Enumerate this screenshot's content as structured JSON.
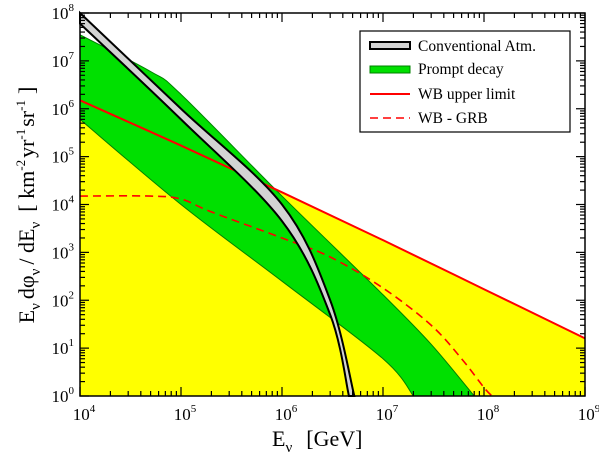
{
  "chart_data": {
    "type": "area",
    "x_scale": "log",
    "y_scale": "log",
    "xlim": [
      10000,
      1000000000
    ],
    "ylim": [
      1,
      100000000
    ],
    "x_ticks": [
      {
        "base": "10",
        "exp": "4",
        "value": 10000
      },
      {
        "base": "10",
        "exp": "5",
        "value": 100000
      },
      {
        "base": "10",
        "exp": "6",
        "value": 1000000
      },
      {
        "base": "10",
        "exp": "7",
        "value": 10000000
      },
      {
        "base": "10",
        "exp": "8",
        "value": 100000000
      },
      {
        "base": "10",
        "exp": "9",
        "value": 1000000000
      }
    ],
    "y_ticks": [
      {
        "base": "10",
        "exp": "0",
        "value": 1
      },
      {
        "base": "10",
        "exp": "1",
        "value": 10
      },
      {
        "base": "10",
        "exp": "2",
        "value": 100
      },
      {
        "base": "10",
        "exp": "3",
        "value": 1000
      },
      {
        "base": "10",
        "exp": "4",
        "value": 10000
      },
      {
        "base": "10",
        "exp": "5",
        "value": 100000
      },
      {
        "base": "10",
        "exp": "6",
        "value": 1000000
      },
      {
        "base": "10",
        "exp": "7",
        "value": 10000000
      },
      {
        "base": "10",
        "exp": "8",
        "value": 100000000
      }
    ],
    "xlabel": {
      "main": "E",
      "sub": "ν",
      "unit": "[GeV]"
    },
    "ylabel": {
      "e": "E",
      "nu": "ν",
      "d": "dφ",
      "slash": "/ dE",
      "bracket_open": "[ km",
      "m2": "-2",
      "yr": "yr",
      "m1a": "-1",
      "sr": "sr",
      "m1b": "-1",
      "bracket_close": "]"
    },
    "legend_position": "top-right",
    "series": [
      {
        "name": "Conventional Atm.",
        "kind": "band",
        "color": "#d3d3d3",
        "edge_color": "#000000",
        "upper": [
          [
            10000,
            100000000
          ],
          [
            100000,
            1000000
          ],
          [
            1000000,
            10000
          ],
          [
            3000000,
            100
          ],
          [
            5200000,
            1
          ]
        ],
        "lower": [
          [
            10000,
            60000000
          ],
          [
            100000,
            600000
          ],
          [
            1000000,
            4500
          ],
          [
            3000000,
            50
          ],
          [
            4600000,
            1
          ]
        ]
      },
      {
        "name": "Prompt decay",
        "kind": "band",
        "color": "#00e000",
        "edge_color": "#008000",
        "upper": [
          [
            10000,
            35000000
          ],
          [
            50000,
            6000000
          ],
          [
            100000,
            2000000
          ],
          [
            1000000,
            15000
          ],
          [
            10000000,
            130
          ],
          [
            30000000,
            12
          ],
          [
            80000000,
            1
          ]
        ],
        "lower": [
          [
            10000,
            600000
          ],
          [
            100000,
            10000
          ],
          [
            1000000,
            250
          ],
          [
            10000000,
            6
          ],
          [
            20000000,
            1
          ]
        ]
      },
      {
        "name": "WB upper limit",
        "kind": "line",
        "color": "#ff0000",
        "dash": "solid",
        "points": [
          [
            10000,
            1500000
          ],
          [
            100000,
            170000
          ],
          [
            1000000,
            18000
          ],
          [
            10000000,
            1800
          ],
          [
            100000000,
            170
          ],
          [
            1000000000,
            16
          ]
        ]
      },
      {
        "name": "WB - GRB",
        "kind": "line",
        "color": "#ff0000",
        "dash": "dashed",
        "points": [
          [
            10000,
            15000
          ],
          [
            50000,
            15000
          ],
          [
            100000,
            13000
          ],
          [
            200000,
            7000
          ],
          [
            1000000,
            2000
          ],
          [
            3000000,
            800
          ],
          [
            10000000,
            180
          ],
          [
            30000000,
            30
          ],
          [
            60000000,
            6
          ],
          [
            100000000,
            1.5
          ],
          [
            120000000,
            1
          ]
        ]
      }
    ],
    "yellow_region": {
      "color": "#ffff00",
      "boundary": "WB upper limit"
    }
  }
}
